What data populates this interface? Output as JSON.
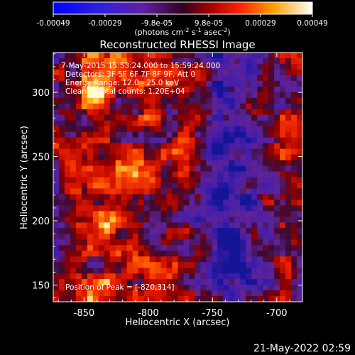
{
  "colorbar": {
    "tick_labels": [
      "-0.00049",
      "-0.00029",
      "-9.8e-05",
      "9.8e-05",
      "0.00029",
      "0.00049"
    ],
    "units_label": "(photons cm",
    "units_exp1": "-2",
    "units_mid": " s",
    "units_exp2": "-1",
    "units_mid2": " asec",
    "units_exp3": "-2",
    "units_end": ")"
  },
  "chart_data": {
    "type": "heatmap",
    "title": "Reconstructed RHESSI Image",
    "xlabel": "Heliocentric X (arcsec)",
    "ylabel": "Heliocentric Y (arcsec)",
    "xlim": [
      -874,
      -680
    ],
    "ylim": [
      137,
      331
    ],
    "x_ticks": [
      -850,
      -800,
      -750,
      -700
    ],
    "y_ticks": [
      150,
      200,
      250,
      300
    ],
    "x_tick_labels": [
      "-850",
      "-800",
      "-750",
      "-700"
    ],
    "y_tick_labels": [
      "150",
      "200",
      "250",
      "300"
    ],
    "value_range": [
      -0.00049,
      0.00049
    ],
    "peak": [
      -820,
      314
    ],
    "colormap": "blue-purple-red-yellow-white"
  },
  "annotations": {
    "time_range": "7-May-2015 15:53:24.000 to 15:59:24.000",
    "detectors": "Detectors: 3F 5F 6F 7F 8F 9F, Att 0",
    "energy": "Energy Range: 12.0 - 25.0 keV",
    "clean": "Clean     Total counts: 1.20E+04",
    "peak_text": "Position of Peak = [-820,314]"
  },
  "footer": {
    "timestamp": "21-May-2022 02:59"
  },
  "colors": {
    "background": "#000000",
    "text": "#ffffff"
  }
}
